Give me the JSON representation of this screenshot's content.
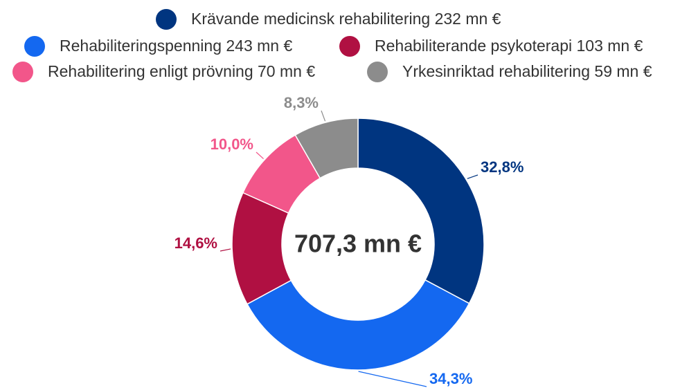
{
  "chart_data": {
    "type": "donut",
    "categories": [
      "Krävande medicinsk rehabilitering 232 mn €",
      "Rehabiliteringspenning 243 mn €",
      "Rehabiliterande psykoterapi 103 mn €",
      "Rehabilitering enligt prövning 70 mn €",
      "Yrkesinriktad rehabilitering 59 mn €"
    ],
    "values": [
      32.8,
      34.3,
      14.6,
      10.0,
      8.3
    ],
    "value_labels": [
      "32,8%",
      "34,3%",
      "14,6%",
      "10,0%",
      "8,3%"
    ],
    "colors": [
      "#003580",
      "#1468f0",
      "#b01042",
      "#f2568a",
      "#8c8c8c"
    ],
    "center_label": "707,3 mn €"
  }
}
